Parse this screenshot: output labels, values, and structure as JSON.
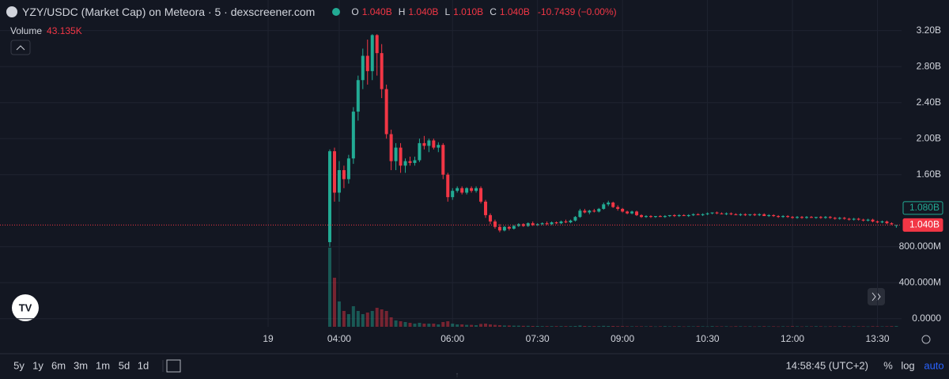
{
  "header": {
    "title": "YZY/USDC (Market Cap) on Meteora · 5 · dexscreener.com",
    "ohlc": [
      {
        "key": "O",
        "value": "1.040B"
      },
      {
        "key": "H",
        "value": "1.040B"
      },
      {
        "key": "L",
        "value": "1.010B"
      },
      {
        "key": "C",
        "value": "1.040B"
      }
    ],
    "change": "-10.7439 (−0.00%)",
    "volume_label": "Volume",
    "volume_value": "43.135K"
  },
  "toolbar": {
    "ranges": [
      "5y",
      "1y",
      "6m",
      "3m",
      "1m",
      "5d",
      "1d"
    ],
    "clock": "14:58:45 (UTC+2)",
    "options": [
      "%",
      "log",
      "auto"
    ]
  },
  "chart_data": {
    "type": "candlestick",
    "up_color": "#22ab94",
    "down_color": "#f23645",
    "x": [
      "03:50",
      "03:55",
      "04:00",
      "04:05",
      "04:10",
      "04:15",
      "04:20",
      "04:25",
      "04:30",
      "04:35",
      "04:40",
      "04:45",
      "04:50",
      "04:55",
      "05:00",
      "05:05",
      "05:10",
      "05:15",
      "05:20",
      "05:25",
      "05:30",
      "05:35",
      "05:40",
      "05:45",
      "05:50",
      "05:55",
      "06:00",
      "06:05",
      "06:10",
      "06:15",
      "06:20",
      "06:25",
      "06:30",
      "06:35",
      "06:40",
      "06:45",
      "06:50",
      "06:55",
      "07:00",
      "07:05",
      "07:10",
      "07:15",
      "07:20",
      "07:25",
      "07:30",
      "07:35",
      "07:40",
      "07:45",
      "07:50",
      "07:55",
      "08:00",
      "08:05",
      "08:10",
      "08:15",
      "08:20",
      "08:25",
      "08:30",
      "08:35",
      "08:40",
      "08:45",
      "08:50",
      "08:55",
      "09:00",
      "09:05",
      "09:10",
      "09:15",
      "09:20",
      "09:25",
      "09:30",
      "09:35",
      "09:40",
      "09:45",
      "09:50",
      "09:55",
      "10:00",
      "10:05",
      "10:10",
      "10:15",
      "10:20",
      "10:25",
      "10:30",
      "10:35",
      "10:40",
      "10:45",
      "10:50",
      "10:55",
      "11:00",
      "11:05",
      "11:10",
      "11:15",
      "11:20",
      "11:25",
      "11:30",
      "11:35",
      "11:40",
      "11:45",
      "11:50",
      "11:55",
      "12:00",
      "12:05",
      "12:10",
      "12:15",
      "12:20",
      "12:25",
      "12:30",
      "12:35",
      "12:40",
      "12:45",
      "12:50",
      "12:55",
      "13:00",
      "13:05",
      "13:10",
      "13:15",
      "13:20",
      "13:25",
      "13:30",
      "13:35",
      "13:40",
      "13:45",
      "13:50"
    ],
    "ohlc": [
      [
        0.85,
        1.88,
        0.8,
        1.86
      ],
      [
        1.86,
        1.9,
        1.3,
        1.4
      ],
      [
        1.4,
        1.75,
        1.3,
        1.65
      ],
      [
        1.65,
        1.7,
        1.45,
        1.55
      ],
      [
        1.55,
        1.82,
        1.5,
        1.78
      ],
      [
        1.78,
        2.35,
        1.72,
        2.3
      ],
      [
        2.3,
        2.7,
        2.2,
        2.65
      ],
      [
        2.65,
        3.0,
        2.55,
        2.92
      ],
      [
        2.92,
        3.1,
        2.6,
        2.75
      ],
      [
        2.75,
        3.16,
        2.65,
        3.15
      ],
      [
        3.15,
        3.16,
        2.7,
        2.95
      ],
      [
        2.95,
        3.05,
        2.45,
        2.55
      ],
      [
        2.55,
        2.6,
        2.0,
        2.05
      ],
      [
        2.05,
        2.1,
        1.65,
        1.75
      ],
      [
        1.75,
        1.95,
        1.65,
        1.9
      ],
      [
        1.9,
        1.95,
        1.62,
        1.7
      ],
      [
        1.7,
        1.78,
        1.62,
        1.75
      ],
      [
        1.75,
        1.8,
        1.7,
        1.73
      ],
      [
        1.73,
        1.8,
        1.7,
        1.76
      ],
      [
        1.76,
        2.0,
        1.74,
        1.95
      ],
      [
        1.95,
        2.03,
        1.88,
        1.92
      ],
      [
        1.92,
        2.0,
        1.85,
        1.98
      ],
      [
        1.98,
        2.0,
        1.88,
        1.9
      ],
      [
        1.9,
        1.96,
        1.85,
        1.93
      ],
      [
        1.93,
        1.95,
        1.55,
        1.6
      ],
      [
        1.6,
        1.62,
        1.3,
        1.35
      ],
      [
        1.35,
        1.45,
        1.32,
        1.42
      ],
      [
        1.42,
        1.47,
        1.4,
        1.45
      ],
      [
        1.45,
        1.47,
        1.38,
        1.4
      ],
      [
        1.4,
        1.46,
        1.38,
        1.45
      ],
      [
        1.45,
        1.47,
        1.4,
        1.42
      ],
      [
        1.42,
        1.47,
        1.4,
        1.45
      ],
      [
        1.45,
        1.47,
        1.28,
        1.3
      ],
      [
        1.3,
        1.32,
        1.12,
        1.15
      ],
      [
        1.15,
        1.17,
        1.05,
        1.08
      ],
      [
        1.08,
        1.1,
        1.0,
        1.02
      ],
      [
        1.02,
        1.05,
        0.96,
        0.98
      ],
      [
        0.98,
        1.03,
        0.97,
        1.02
      ],
      [
        1.02,
        1.03,
        0.98,
        1.0
      ],
      [
        1.0,
        1.04,
        0.99,
        1.03
      ],
      [
        1.03,
        1.06,
        1.02,
        1.05
      ],
      [
        1.05,
        1.06,
        1.02,
        1.03
      ],
      [
        1.03,
        1.07,
        1.02,
        1.06
      ],
      [
        1.06,
        1.08,
        1.03,
        1.04
      ],
      [
        1.04,
        1.06,
        1.03,
        1.05
      ],
      [
        1.05,
        1.07,
        1.04,
        1.06
      ],
      [
        1.06,
        1.08,
        1.04,
        1.05
      ],
      [
        1.05,
        1.08,
        1.04,
        1.07
      ],
      [
        1.07,
        1.08,
        1.05,
        1.06
      ],
      [
        1.06,
        1.09,
        1.05,
        1.08
      ],
      [
        1.08,
        1.1,
        1.06,
        1.07
      ],
      [
        1.07,
        1.1,
        1.06,
        1.09
      ],
      [
        1.09,
        1.14,
        1.08,
        1.13
      ],
      [
        1.13,
        1.22,
        1.12,
        1.2
      ],
      [
        1.2,
        1.22,
        1.17,
        1.18
      ],
      [
        1.18,
        1.21,
        1.16,
        1.2
      ],
      [
        1.2,
        1.22,
        1.18,
        1.19
      ],
      [
        1.19,
        1.23,
        1.18,
        1.22
      ],
      [
        1.22,
        1.29,
        1.21,
        1.27
      ],
      [
        1.27,
        1.31,
        1.25,
        1.29
      ],
      [
        1.29,
        1.3,
        1.23,
        1.24
      ],
      [
        1.24,
        1.26,
        1.2,
        1.22
      ],
      [
        1.22,
        1.23,
        1.18,
        1.19
      ],
      [
        1.19,
        1.2,
        1.16,
        1.17
      ],
      [
        1.17,
        1.2,
        1.16,
        1.19
      ],
      [
        1.19,
        1.2,
        1.14,
        1.15
      ],
      [
        1.15,
        1.16,
        1.12,
        1.13
      ],
      [
        1.13,
        1.15,
        1.12,
        1.14
      ],
      [
        1.14,
        1.15,
        1.12,
        1.13
      ],
      [
        1.13,
        1.14,
        1.12,
        1.14
      ],
      [
        1.14,
        1.15,
        1.13,
        1.13
      ],
      [
        1.13,
        1.15,
        1.12,
        1.14
      ],
      [
        1.14,
        1.15,
        1.13,
        1.15
      ],
      [
        1.15,
        1.16,
        1.13,
        1.14
      ],
      [
        1.14,
        1.16,
        1.13,
        1.15
      ],
      [
        1.15,
        1.16,
        1.14,
        1.14
      ],
      [
        1.14,
        1.16,
        1.13,
        1.15
      ],
      [
        1.15,
        1.17,
        1.14,
        1.16
      ],
      [
        1.16,
        1.17,
        1.15,
        1.15
      ],
      [
        1.15,
        1.17,
        1.14,
        1.16
      ],
      [
        1.16,
        1.18,
        1.15,
        1.17
      ],
      [
        1.17,
        1.18,
        1.16,
        1.18
      ],
      [
        1.18,
        1.19,
        1.16,
        1.17
      ],
      [
        1.17,
        1.18,
        1.16,
        1.16
      ],
      [
        1.16,
        1.18,
        1.15,
        1.17
      ],
      [
        1.17,
        1.18,
        1.15,
        1.16
      ],
      [
        1.16,
        1.17,
        1.15,
        1.15
      ],
      [
        1.15,
        1.17,
        1.14,
        1.16
      ],
      [
        1.16,
        1.17,
        1.14,
        1.15
      ],
      [
        1.15,
        1.16,
        1.14,
        1.16
      ],
      [
        1.16,
        1.17,
        1.14,
        1.15
      ],
      [
        1.15,
        1.17,
        1.14,
        1.16
      ],
      [
        1.16,
        1.17,
        1.14,
        1.14
      ],
      [
        1.14,
        1.16,
        1.13,
        1.15
      ],
      [
        1.15,
        1.16,
        1.13,
        1.14
      ],
      [
        1.14,
        1.15,
        1.12,
        1.13
      ],
      [
        1.13,
        1.15,
        1.12,
        1.14
      ],
      [
        1.14,
        1.15,
        1.12,
        1.13
      ],
      [
        1.13,
        1.14,
        1.11,
        1.12
      ],
      [
        1.12,
        1.14,
        1.11,
        1.13
      ],
      [
        1.13,
        1.14,
        1.11,
        1.12
      ],
      [
        1.12,
        1.14,
        1.11,
        1.13
      ],
      [
        1.13,
        1.14,
        1.12,
        1.12
      ],
      [
        1.12,
        1.13,
        1.11,
        1.13
      ],
      [
        1.13,
        1.14,
        1.11,
        1.12
      ],
      [
        1.12,
        1.14,
        1.11,
        1.13
      ],
      [
        1.13,
        1.14,
        1.11,
        1.12
      ],
      [
        1.12,
        1.13,
        1.1,
        1.11
      ],
      [
        1.11,
        1.13,
        1.1,
        1.12
      ],
      [
        1.12,
        1.13,
        1.1,
        1.11
      ],
      [
        1.11,
        1.12,
        1.09,
        1.1
      ],
      [
        1.1,
        1.12,
        1.09,
        1.11
      ],
      [
        1.11,
        1.12,
        1.09,
        1.1
      ],
      [
        1.1,
        1.11,
        1.08,
        1.09
      ],
      [
        1.09,
        1.11,
        1.08,
        1.1
      ],
      [
        1.1,
        1.11,
        1.07,
        1.08
      ],
      [
        1.08,
        1.09,
        1.06,
        1.07
      ],
      [
        1.07,
        1.09,
        1.06,
        1.08
      ],
      [
        1.08,
        1.09,
        1.05,
        1.06
      ],
      [
        1.06,
        1.07,
        1.04,
        1.05
      ],
      [
        1.04,
        1.04,
        1.01,
        1.04
      ]
    ],
    "volume": [
      5000,
      3100,
      1600,
      1000,
      800,
      1300,
      1000,
      800,
      900,
      1000,
      1200,
      1100,
      1000,
      600,
      400,
      350,
      300,
      250,
      200,
      250,
      200,
      200,
      200,
      150,
      300,
      350,
      200,
      150,
      150,
      120,
      120,
      100,
      180,
      200,
      150,
      120,
      100,
      80,
      80,
      70,
      70,
      60,
      60,
      50,
      50,
      40,
      40,
      40,
      40,
      40,
      40,
      40,
      50,
      80,
      50,
      40,
      40,
      40,
      60,
      50,
      50,
      40,
      40,
      30,
      30,
      30,
      30,
      25,
      35,
      20,
      30,
      40,
      25,
      30,
      35,
      20,
      30,
      25,
      35,
      30,
      20,
      40,
      30,
      25,
      30,
      20,
      35,
      30,
      25,
      30,
      20,
      30,
      35,
      25,
      30,
      20,
      30,
      25,
      40,
      30,
      20,
      30,
      25,
      35,
      30,
      20,
      30,
      25,
      30,
      35,
      20,
      30,
      25,
      30,
      20,
      35,
      30,
      25,
      30,
      40,
      43.135
    ],
    "ylim": [
      -0.09,
      3.54
    ],
    "yticks": [
      {
        "value": 3.2,
        "label": "3.20B"
      },
      {
        "value": 2.8,
        "label": "2.80B"
      },
      {
        "value": 2.4,
        "label": "2.40B"
      },
      {
        "value": 2.0,
        "label": "2.00B"
      },
      {
        "value": 1.6,
        "label": "1.60B"
      },
      {
        "value": 0.8,
        "label": "800.000M"
      },
      {
        "value": 0.4,
        "label": "400.000M"
      },
      {
        "value": 0,
        "label": "0.0000"
      }
    ],
    "volume_ylim": [
      0,
      8000
    ],
    "xticks": [
      "19",
      "04:00",
      "06:00",
      "07:30",
      "09:00",
      "10:30",
      "12:00",
      "13:30"
    ],
    "price_markers": [
      {
        "value": 1.08,
        "label": "1.080B",
        "color": "#22ab94"
      },
      {
        "value": 1.04,
        "label": "1.040B",
        "color": "#f23645"
      }
    ],
    "grid": true
  }
}
